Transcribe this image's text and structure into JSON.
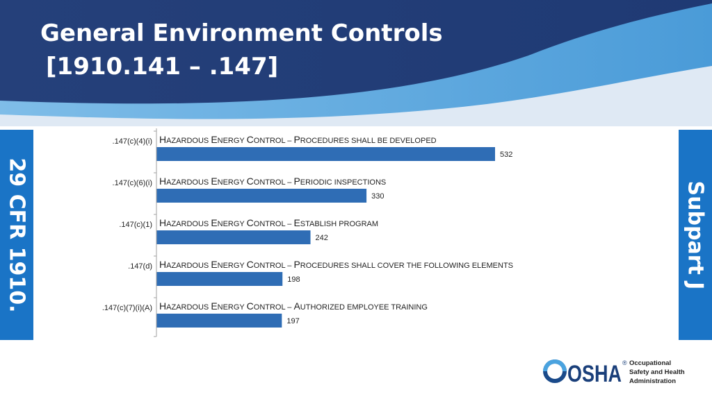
{
  "title": {
    "line1": "General Environment Controls",
    "line2": "[1910.141 – .147]"
  },
  "left_banner": "29 CFR 1910.",
  "right_banner": "Subpart J",
  "colors": {
    "bar": "#2f6db5",
    "banner": "#1a74c6",
    "header_dark": "#233f7a",
    "header_light": "#5aa9e0"
  },
  "logo": {
    "mark": "OSHA",
    "registered": "®",
    "line1": "Occupational",
    "line2": "Safety and Health",
    "line3": "Administration"
  },
  "chart_data": {
    "type": "bar",
    "orientation": "horizontal",
    "categories": [
      ".147(c)(4)(i)",
      ".147(c)(6)(i)",
      ".147(c)(1)",
      ".147(d)",
      ".147(c)(7)(i)(A)"
    ],
    "bar_titles": [
      [
        {
          "t": "H",
          "big": true
        },
        {
          "t": "AZARDOUS ",
          "big": false
        },
        {
          "t": "E",
          "big": true
        },
        {
          "t": "NERGY ",
          "big": false
        },
        {
          "t": "C",
          "big": true
        },
        {
          "t": "ONTROL – ",
          "big": false
        },
        {
          "t": "P",
          "big": true
        },
        {
          "t": "ROCEDURES SHALL BE DEVELOPED",
          "big": false
        }
      ],
      [
        {
          "t": "H",
          "big": true
        },
        {
          "t": "AZARDOUS ",
          "big": false
        },
        {
          "t": "E",
          "big": true
        },
        {
          "t": "NERGY ",
          "big": false
        },
        {
          "t": "C",
          "big": true
        },
        {
          "t": "ONTROL – ",
          "big": false
        },
        {
          "t": "P",
          "big": true
        },
        {
          "t": "ERIODIC INSPECTIONS",
          "big": false
        }
      ],
      [
        {
          "t": "H",
          "big": true
        },
        {
          "t": "AZARDOUS ",
          "big": false
        },
        {
          "t": "E",
          "big": true
        },
        {
          "t": "NERGY ",
          "big": false
        },
        {
          "t": "C",
          "big": true
        },
        {
          "t": "ONTROL – ",
          "big": false
        },
        {
          "t": "E",
          "big": true
        },
        {
          "t": "STABLISH PROGRAM",
          "big": false
        }
      ],
      [
        {
          "t": "H",
          "big": true
        },
        {
          "t": "AZARDOUS ",
          "big": false
        },
        {
          "t": "E",
          "big": true
        },
        {
          "t": "NERGY ",
          "big": false
        },
        {
          "t": "C",
          "big": true
        },
        {
          "t": "ONTROL – ",
          "big": false
        },
        {
          "t": "P",
          "big": true
        },
        {
          "t": "ROCEDURES SHALL COVER THE FOLLOWING ELEMENTS",
          "big": false
        }
      ],
      [
        {
          "t": "H",
          "big": true
        },
        {
          "t": "AZARDOUS ",
          "big": false
        },
        {
          "t": "E",
          "big": true
        },
        {
          "t": "NERGY ",
          "big": false
        },
        {
          "t": "C",
          "big": true
        },
        {
          "t": "ONTROL – ",
          "big": false
        },
        {
          "t": "A",
          "big": true
        },
        {
          "t": "UTHORIZED EMPLOYEE TRAINING",
          "big": false
        }
      ]
    ],
    "values": [
      532,
      330,
      242,
      198,
      197
    ],
    "xlim": [
      0,
      532
    ],
    "grid": false,
    "legend": "none"
  }
}
